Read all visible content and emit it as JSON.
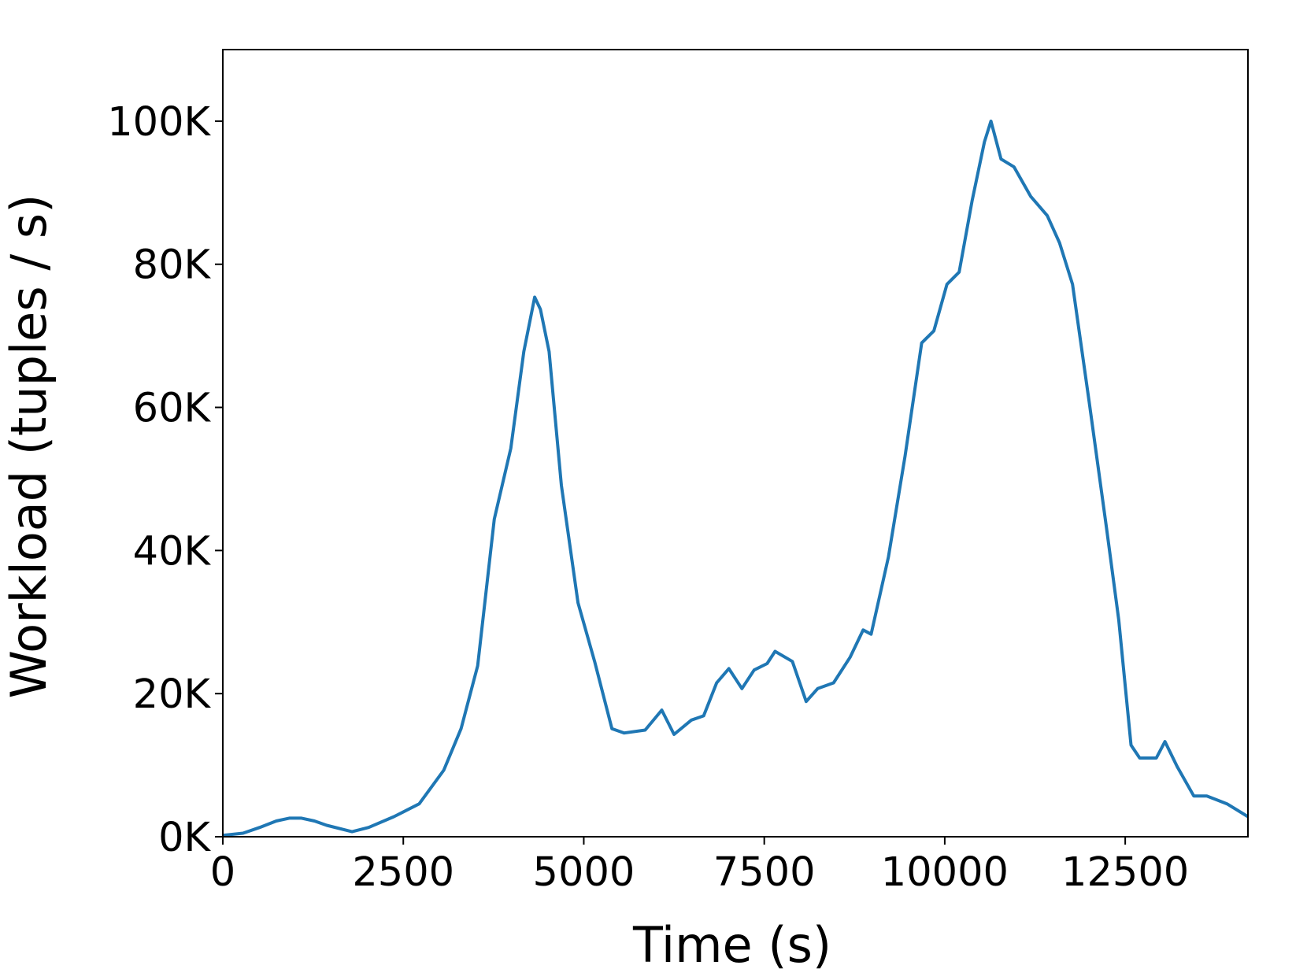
{
  "chart_data": {
    "type": "line",
    "xlabel": "Time (s)",
    "ylabel": "Workload (tuples / s)",
    "x": [
      0,
      280,
      510,
      740,
      920,
      1090,
      1270,
      1440,
      1790,
      2020,
      2370,
      2720,
      3060,
      3300,
      3530,
      3760,
      3990,
      4170,
      4320,
      4400,
      4520,
      4690,
      4920,
      5150,
      5390,
      5560,
      5850,
      6080,
      6250,
      6490,
      6660,
      6840,
      7010,
      7190,
      7360,
      7540,
      7650,
      7890,
      8080,
      8240,
      8460,
      8690,
      8870,
      8980,
      9220,
      9450,
      9680,
      9850,
      10030,
      10200,
      10380,
      10550,
      10640,
      10780,
      10960,
      11190,
      11420,
      11590,
      11770,
      12000,
      12240,
      12410,
      12580,
      12700,
      12930,
      13050,
      13220,
      13450,
      13630,
      13910,
      14200
    ],
    "series": [
      {
        "color": "#1f77b4",
        "values": [
          200,
          500,
          1300,
          2200,
          2600,
          2600,
          2200,
          1600,
          700,
          1300,
          2800,
          4600,
          9300,
          15100,
          23900,
          44400,
          54300,
          67800,
          75400,
          73700,
          67800,
          49100,
          32700,
          24500,
          15100,
          14500,
          14900,
          17700,
          14300,
          16300,
          16900,
          21500,
          23500,
          20700,
          23300,
          24200,
          25900,
          24500,
          18900,
          20700,
          21500,
          25100,
          28900,
          28300,
          39100,
          53200,
          69000,
          70700,
          77200,
          78900,
          88900,
          97100,
          100000,
          94700,
          93600,
          89500,
          86800,
          83000,
          77200,
          60800,
          43200,
          30300,
          12800,
          11000,
          11000,
          13300,
          9800,
          5700,
          5700,
          4600,
          2800
        ]
      }
    ],
    "xlim": [
      0,
      14200
    ],
    "xticks": [
      0,
      2500,
      5000,
      7500,
      10000,
      12500
    ],
    "ylim": [
      0,
      110000
    ],
    "yticks": [
      {
        "value": 0,
        "label": "0K"
      },
      {
        "value": 20000,
        "label": "20K"
      },
      {
        "value": 40000,
        "label": "40K"
      },
      {
        "value": 60000,
        "label": "60K"
      },
      {
        "value": 80000,
        "label": "80K"
      },
      {
        "value": 100000,
        "label": "100K"
      }
    ],
    "grid": false
  }
}
